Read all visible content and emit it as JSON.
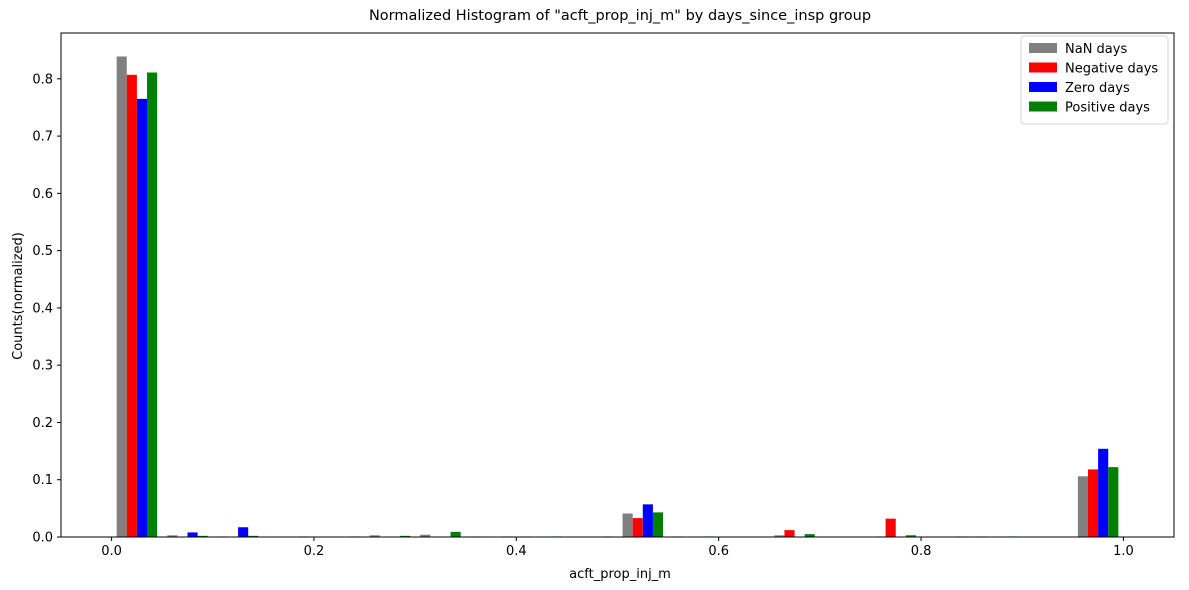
{
  "chart_data": {
    "type": "bar",
    "title": "Normalized Histogram of \"acft_prop_inj_m\" by days_since_insp group",
    "xlabel": "acft_prop_inj_m",
    "ylabel": "Counts(normalized)",
    "xlim": [
      -0.05,
      1.05
    ],
    "ylim": [
      0,
      0.88
    ],
    "xticks": [
      "0.0",
      "0.2",
      "0.4",
      "0.6",
      "0.8",
      "1.0"
    ],
    "yticks": [
      "0.0",
      "0.1",
      "0.2",
      "0.3",
      "0.4",
      "0.5",
      "0.6",
      "0.7",
      "0.8"
    ],
    "bin_edges": [
      0.0,
      0.05,
      0.1,
      0.15,
      0.2,
      0.25,
      0.3,
      0.35,
      0.4,
      0.45,
      0.5,
      0.55,
      0.6,
      0.65,
      0.7,
      0.75,
      0.8,
      0.85,
      0.9,
      0.95,
      1.0
    ],
    "legend_position": "top-right",
    "series": [
      {
        "name": "NaN days",
        "color": "#808080",
        "values": [
          0.839,
          0.003,
          0.001,
          0.0,
          0.0,
          0.003,
          0.004,
          0.001,
          0.001,
          0.0,
          0.041,
          0.001,
          0.0,
          0.003,
          0.0,
          0.001,
          0.0,
          0.001,
          0.0,
          0.106
        ]
      },
      {
        "name": "Negative days",
        "color": "#ff0000",
        "values": [
          0.807,
          0.0,
          0.0,
          0.0,
          0.0,
          0.0,
          0.0,
          0.0,
          0.0,
          0.0,
          0.033,
          0.0,
          0.0,
          0.012,
          0.0,
          0.032,
          0.0,
          0.0,
          0.0,
          0.118
        ]
      },
      {
        "name": "Zero days",
        "color": "#0000ff",
        "values": [
          0.765,
          0.008,
          0.017,
          0.0,
          0.0,
          0.0,
          0.0,
          0.0,
          0.0,
          0.0,
          0.057,
          0.0,
          0.0,
          0.0,
          0.0,
          0.0,
          0.0,
          0.0,
          0.0,
          0.154
        ]
      },
      {
        "name": "Positive days",
        "color": "#008000",
        "values": [
          0.811,
          0.002,
          0.002,
          0.001,
          0.001,
          0.002,
          0.009,
          0.001,
          0.001,
          0.001,
          0.043,
          0.001,
          0.0,
          0.005,
          0.0,
          0.003,
          0.001,
          0.001,
          0.0,
          0.122
        ]
      }
    ]
  }
}
